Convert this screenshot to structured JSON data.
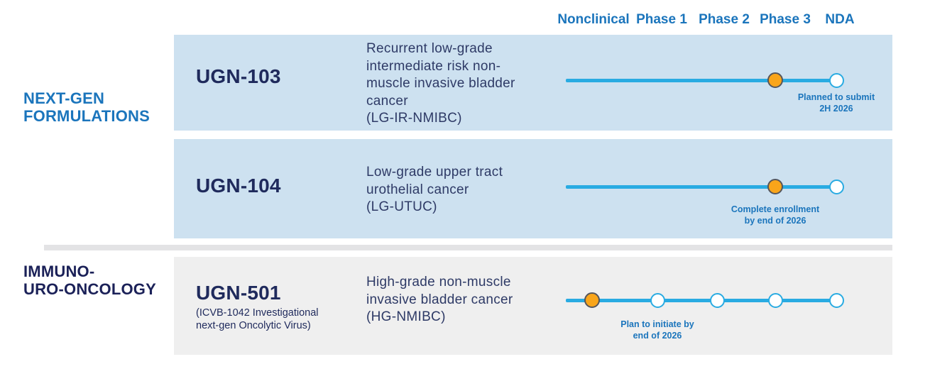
{
  "header": {
    "phases": [
      "Nonclinical",
      "Phase 1",
      "Phase 2",
      "Phase 3",
      "NDA"
    ]
  },
  "groups": [
    {
      "label": "NEXT-GEN\nFORMULATIONS"
    },
    {
      "label": "IMMUNO-\nURO-ONCOLOGY"
    }
  ],
  "programs": [
    {
      "id": "UGN-103",
      "subtitle": "",
      "indication": "Recurrent low-grade\nintermediate risk non-\nmuscle invasive bladder\ncancer\n(LG-IR-NMIBC)",
      "timeline": {
        "markers": [
          {
            "phase": "Phase 3",
            "state": "current"
          },
          {
            "phase": "NDA",
            "state": "planned"
          }
        ],
        "note": "Planned to submit\n2H 2026",
        "note_anchor": "NDA"
      }
    },
    {
      "id": "UGN-104",
      "subtitle": "",
      "indication": "Low-grade upper tract\nurothelial cancer\n(LG-UTUC)",
      "timeline": {
        "markers": [
          {
            "phase": "Phase 3",
            "state": "current"
          },
          {
            "phase": "NDA",
            "state": "planned"
          }
        ],
        "note": "Complete enrollment\nby end of 2026",
        "note_anchor": "Phase 3"
      }
    },
    {
      "id": "UGN-501",
      "subtitle": "(ICVB-1042 Investigational\nnext-gen Oncolytic Virus)",
      "indication": "High-grade non-muscle\ninvasive bladder cancer\n(HG-NMIBC)",
      "timeline": {
        "markers": [
          {
            "phase": "Nonclinical",
            "state": "current"
          },
          {
            "phase": "Phase 1",
            "state": "planned"
          },
          {
            "phase": "Phase 2",
            "state": "planned"
          },
          {
            "phase": "Phase 3",
            "state": "planned"
          },
          {
            "phase": "NDA",
            "state": "planned"
          }
        ],
        "note": "Plan to initiate by\nend of 2026",
        "note_anchor": "Phase 1"
      }
    }
  ],
  "colors": {
    "header_blue": "#1b75bc",
    "group2_navy": "#1b2158",
    "program_navy": "#1f2a5c",
    "indication_navy": "#2e3a66",
    "track_cyan": "#29abe2",
    "milestone_orange": "#f9a51a",
    "milestone_outline": "#55565c",
    "panel_blue": "#cde1f0",
    "panel_gray": "#efefef",
    "divider_gray": "#e3e3e5"
  }
}
